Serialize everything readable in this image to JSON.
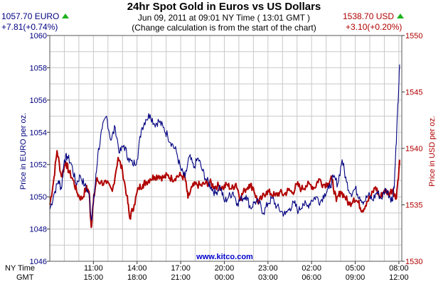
{
  "header": {
    "title": "24hr Spot Gold in Euros vs US Dollars",
    "datetime": "Jun 09, 2011 at 09:01 NY Time ( 13:01 GMT )",
    "note": "(Change calculation is from the start of the chart)",
    "eur_price": "1057.70 EURO",
    "eur_change": "+7.81(+0.74%)",
    "usd_price": "1538.70 USD",
    "usd_change": "+3.10(+0.20%)",
    "website": "www.kitco.com",
    "ny_time_label": "NY Time",
    "gmt_label": "GMT"
  },
  "colors": {
    "eur": "#000080",
    "usd": "#b00000",
    "up_arrow": "#1db31d",
    "grid": "#c8c8c8",
    "website": "#0000cc"
  },
  "chart_data": {
    "type": "line",
    "grid": true,
    "y_left": {
      "label": "Price in EURO per oz.",
      "range": [
        1046,
        1060
      ],
      "ticks": [
        "1046",
        "1048",
        "1050",
        "1052",
        "1054",
        "1056",
        "1058",
        "1060"
      ]
    },
    "y_right": {
      "label": "Price in USD per oz.",
      "range": [
        1530,
        1550
      ],
      "ticks": [
        "1530",
        "1535",
        "1540",
        "1545",
        "1550"
      ]
    },
    "x_ticks_ny": [
      "11:00",
      "14:00",
      "17:00",
      "20:00",
      "23:00",
      "02:00",
      "05:00",
      "08:00"
    ],
    "x_ticks_gmt": [
      "15:00",
      "18:00",
      "21:00",
      "00:00",
      "03:00",
      "06:00",
      "09:00",
      "12:00"
    ],
    "series": [
      {
        "axis": "left",
        "unit": "EURO",
        "x": [
          0,
          0.3,
          0.6,
          0.8,
          1.0,
          1.2,
          1.5,
          1.8,
          2.1,
          2.4,
          2.7,
          2.85,
          3.0,
          3.15,
          3.3,
          3.6,
          3.9,
          4.2,
          4.5,
          4.8,
          5.1,
          5.4,
          5.7,
          6.0,
          6.3,
          6.6,
          6.9,
          7.2,
          7.5,
          7.8,
          8.1,
          8.4,
          8.7,
          9.0,
          9.3,
          9.6,
          9.9,
          10.2,
          10.5,
          10.8,
          11.1,
          11.4,
          11.7,
          12.0,
          12.3,
          12.6,
          12.9,
          13.2,
          13.5,
          13.8,
          14.1,
          14.4,
          14.7,
          15.0,
          15.3,
          15.6,
          15.9,
          16.2,
          16.5,
          16.8,
          17.1,
          17.4,
          17.7,
          18.0,
          18.3,
          18.6,
          18.9,
          19.2,
          19.5,
          19.8,
          20.1,
          20.4,
          20.7,
          21.0,
          21.3,
          21.6,
          21.9,
          22.2,
          22.5,
          22.8,
          23.1,
          23.4,
          23.55,
          23.7,
          23.85,
          24.0,
          24.05
        ],
        "y": [
          1049.2,
          1050.2,
          1051.0,
          1050.5,
          1052.3,
          1052.5,
          1052.0,
          1050.8,
          1051.3,
          1050.7,
          1050.2,
          1048.6,
          1049.6,
          1051.0,
          1052.6,
          1054.2,
          1055.0,
          1053.5,
          1054.3,
          1052.7,
          1053.2,
          1052.4,
          1052.0,
          1052.3,
          1054.2,
          1054.8,
          1055.1,
          1054.5,
          1054.7,
          1054.3,
          1053.8,
          1053.3,
          1052.8,
          1051.7,
          1051.2,
          1052.5,
          1051.8,
          1052.4,
          1051.6,
          1051.0,
          1050.6,
          1050.2,
          1050.7,
          1049.7,
          1050.0,
          1050.3,
          1049.6,
          1049.9,
          1050.1,
          1049.3,
          1049.7,
          1049.6,
          1049.0,
          1049.6,
          1049.9,
          1049.4,
          1049.1,
          1048.9,
          1049.3,
          1049.6,
          1049.1,
          1049.6,
          1049.4,
          1049.8,
          1050.0,
          1049.7,
          1050.2,
          1050.5,
          1051.2,
          1050.8,
          1052.3,
          1050.9,
          1050.2,
          1050.5,
          1050.0,
          1049.7,
          1050.1,
          1049.8,
          1050.3,
          1049.9,
          1050.5,
          1050.0,
          1049.8,
          1051.0,
          1054.0,
          1057.0,
          1058.2
        ]
      },
      {
        "axis": "right",
        "unit": "USD",
        "x": [
          0,
          0.25,
          0.5,
          0.8,
          1.1,
          1.3,
          1.6,
          1.9,
          2.2,
          2.5,
          2.7,
          2.85,
          3.0,
          3.2,
          3.5,
          3.9,
          4.3,
          4.7,
          5.0,
          5.3,
          5.5,
          5.8,
          6.1,
          6.4,
          6.6,
          6.9,
          7.2,
          7.5,
          7.8,
          8.1,
          8.4,
          8.7,
          9.0,
          9.3,
          9.5,
          9.8,
          10.1,
          10.4,
          10.7,
          11.0,
          11.3,
          11.6,
          11.9,
          12.2,
          12.5,
          12.8,
          13.1,
          13.4,
          13.7,
          14.0,
          14.3,
          14.6,
          14.9,
          15.2,
          15.5,
          15.8,
          16.1,
          16.4,
          16.7,
          17.0,
          17.3,
          17.6,
          17.9,
          18.2,
          18.5,
          18.8,
          19.1,
          19.4,
          19.7,
          20.0,
          20.3,
          20.6,
          20.9,
          21.2,
          21.5,
          21.8,
          22.1,
          22.4,
          22.7,
          23.0,
          23.3,
          23.6,
          23.8,
          24.0,
          24.05
        ],
        "y": [
          1535.0,
          1537.0,
          1539.8,
          1537.5,
          1538.8,
          1538.0,
          1537.2,
          1536.0,
          1535.5,
          1536.5,
          1536.2,
          1533.0,
          1535.3,
          1537.2,
          1537.0,
          1536.9,
          1536.2,
          1539.2,
          1538.0,
          1535.8,
          1533.8,
          1535.0,
          1536.5,
          1536.8,
          1537.0,
          1537.3,
          1537.5,
          1537.6,
          1537.4,
          1537.6,
          1537.3,
          1537.5,
          1537.6,
          1537.4,
          1535.6,
          1536.6,
          1536.8,
          1536.7,
          1536.9,
          1537.0,
          1536.6,
          1536.7,
          1536.5,
          1536.8,
          1536.4,
          1536.9,
          1535.6,
          1536.3,
          1536.8,
          1536.5,
          1535.2,
          1535.6,
          1536.2,
          1536.0,
          1535.8,
          1536.1,
          1535.9,
          1536.3,
          1536.1,
          1536.8,
          1536.4,
          1536.7,
          1536.8,
          1536.5,
          1537.3,
          1536.8,
          1536.9,
          1537.3,
          1535.3,
          1536.2,
          1535.7,
          1535.0,
          1535.6,
          1535.2,
          1534.5,
          1535.3,
          1535.8,
          1536.6,
          1535.6,
          1536.3,
          1536.0,
          1536.4,
          1535.5,
          1538.0,
          1539.0
        ]
      }
    ]
  }
}
